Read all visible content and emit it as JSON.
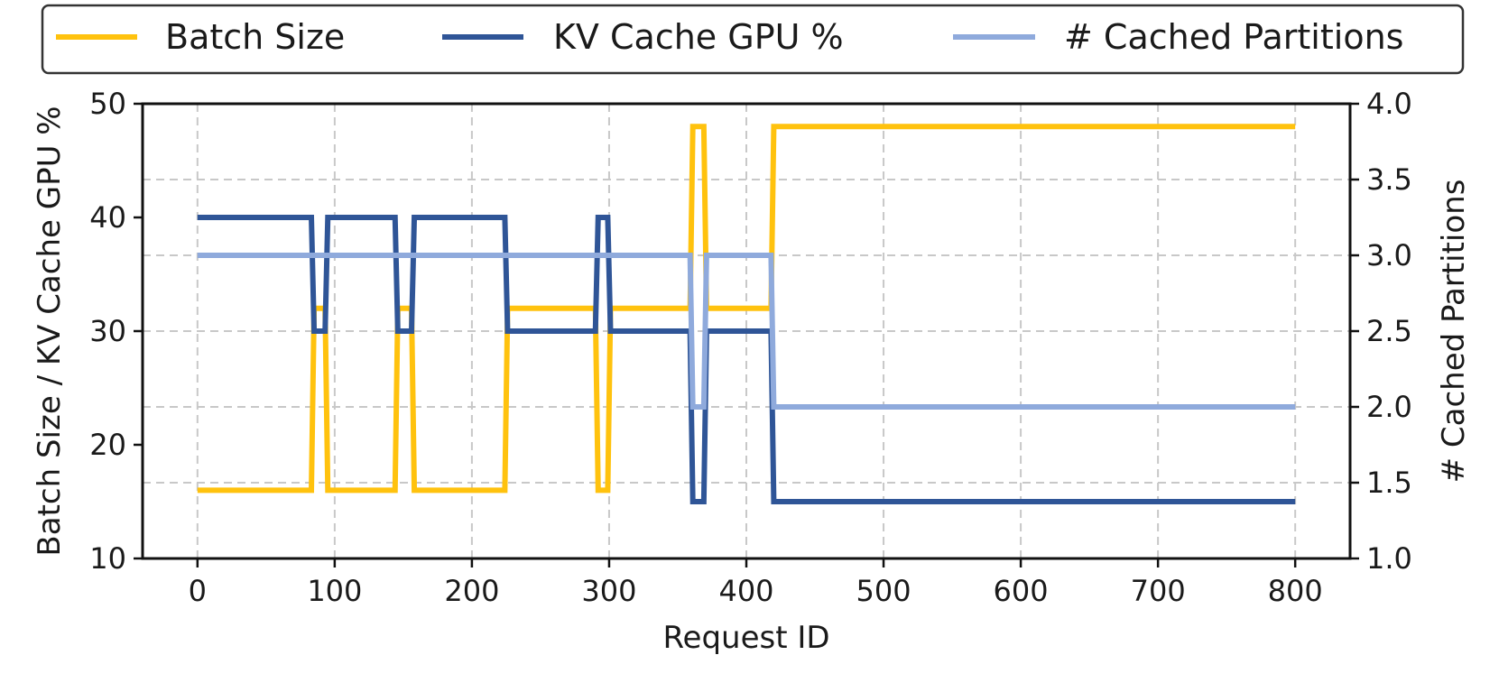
{
  "chart_data": {
    "type": "line",
    "xlabel": "Request ID",
    "ylabel": "Batch Size / KV Cache GPU %",
    "y2label": "# Cached Partitions",
    "xlim": [
      -40,
      840
    ],
    "ylim": [
      10,
      50
    ],
    "y2lim": [
      1.0,
      4.0
    ],
    "grid": true,
    "legend_position": "top",
    "x_ticks": [
      0,
      100,
      200,
      300,
      400,
      500,
      600,
      700,
      800
    ],
    "x_tick_labels": [
      "0",
      "100",
      "200",
      "300",
      "400",
      "500",
      "600",
      "700",
      "800"
    ],
    "y_ticks": [
      10,
      20,
      30,
      40,
      50
    ],
    "y_tick_labels": [
      "10",
      "20",
      "30",
      "40",
      "50"
    ],
    "y2_ticks": [
      1.0,
      1.5,
      2.0,
      2.5,
      3.0,
      3.5,
      4.0
    ],
    "y2_tick_labels": [
      "1.0",
      "1.5",
      "2.0",
      "2.5",
      "3.0",
      "3.5",
      "4.0"
    ],
    "series": [
      {
        "name": "Batch Size",
        "axis": "left",
        "color": "#FFC20E",
        "x": [
          0,
          83,
          85,
          93,
          95,
          144,
          146,
          156,
          158,
          224,
          226,
          290,
          292,
          299,
          301,
          359,
          361,
          369,
          371,
          418,
          420,
          800
        ],
        "y": [
          16,
          16,
          32,
          32,
          16,
          16,
          32,
          32,
          16,
          16,
          32,
          32,
          16,
          16,
          32,
          32,
          48,
          48,
          32,
          32,
          48,
          48
        ]
      },
      {
        "name": "KV Cache GPU %",
        "axis": "left",
        "color": "#2F5597",
        "x": [
          0,
          83,
          85,
          93,
          95,
          144,
          146,
          156,
          158,
          224,
          226,
          290,
          292,
          299,
          301,
          359,
          361,
          369,
          371,
          418,
          420,
          800
        ],
        "y": [
          40,
          40,
          30,
          30,
          40,
          40,
          30,
          30,
          40,
          40,
          30,
          30,
          40,
          40,
          30,
          30,
          15,
          15,
          30,
          30,
          15,
          15
        ]
      },
      {
        "name": "# Cached Partitions",
        "axis": "right",
        "color": "#8FAADC",
        "x": [
          0,
          359,
          361,
          369,
          371,
          418,
          420,
          800
        ],
        "y": [
          3,
          3,
          2,
          2,
          3,
          3,
          2,
          2
        ]
      }
    ]
  }
}
